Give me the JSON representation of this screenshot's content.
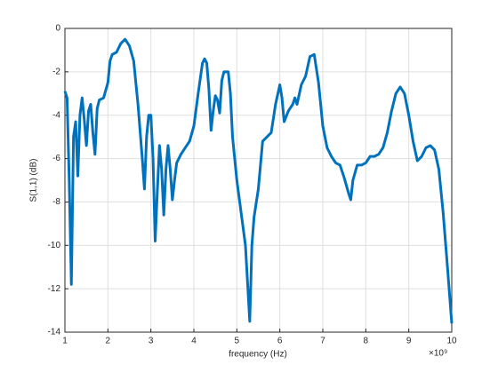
{
  "chart_data": {
    "type": "line",
    "xlabel": "frequency (Hz)",
    "ylabel": "S(1,1) (dB)",
    "x_multiplier": "×10⁹",
    "x": [
      1.0,
      1.05,
      1.1,
      1.15,
      1.2,
      1.25,
      1.3,
      1.35,
      1.4,
      1.45,
      1.5,
      1.55,
      1.6,
      1.65,
      1.7,
      1.75,
      1.8,
      1.9,
      2.0,
      2.05,
      2.1,
      2.2,
      2.3,
      2.4,
      2.5,
      2.6,
      2.7,
      2.8,
      2.85,
      2.9,
      2.95,
      3.0,
      3.05,
      3.1,
      3.15,
      3.2,
      3.25,
      3.3,
      3.35,
      3.4,
      3.45,
      3.5,
      3.55,
      3.6,
      3.7,
      3.8,
      3.9,
      4.0,
      4.1,
      4.2,
      4.25,
      4.3,
      4.35,
      4.4,
      4.45,
      4.5,
      4.55,
      4.6,
      4.65,
      4.7,
      4.8,
      4.85,
      4.9,
      5.0,
      5.1,
      5.2,
      5.3,
      5.35,
      5.4,
      5.5,
      5.6,
      5.7,
      5.8,
      5.9,
      6.0,
      6.05,
      6.1,
      6.2,
      6.3,
      6.35,
      6.4,
      6.5,
      6.6,
      6.7,
      6.8,
      6.9,
      7.0,
      7.1,
      7.2,
      7.3,
      7.4,
      7.5,
      7.6,
      7.65,
      7.7,
      7.8,
      7.9,
      8.0,
      8.1,
      8.2,
      8.3,
      8.4,
      8.5,
      8.6,
      8.7,
      8.8,
      8.9,
      9.0,
      9.1,
      9.2,
      9.3,
      9.4,
      9.5,
      9.6,
      9.7,
      9.8,
      9.9,
      10.0
    ],
    "series": [
      {
        "name": "S(1,1)",
        "color": "#0072bd",
        "values": [
          -2.9,
          -3.2,
          -7,
          -11.8,
          -5,
          -4.3,
          -6.8,
          -4,
          -3.2,
          -4.2,
          -5.4,
          -3.8,
          -3.5,
          -4.8,
          -5.8,
          -3.7,
          -3.3,
          -3.2,
          -2.5,
          -1.5,
          -1.2,
          -1.1,
          -0.7,
          -0.5,
          -0.8,
          -1.5,
          -3.5,
          -6.0,
          -7.4,
          -5,
          -4.0,
          -4.0,
          -6,
          -9.8,
          -7.5,
          -5.4,
          -6.5,
          -8.6,
          -6.5,
          -5.4,
          -6.5,
          -7.9,
          -7.0,
          -6.2,
          -5.8,
          -5.5,
          -5.2,
          -4.5,
          -3.0,
          -1.6,
          -1.4,
          -1.6,
          -2.8,
          -4.7,
          -3.8,
          -3.1,
          -3.3,
          -3.9,
          -2.4,
          -2.0,
          -2.0,
          -3.0,
          -5,
          -7,
          -8.5,
          -10.0,
          -13.5,
          -10,
          -8.7,
          -7.4,
          -5.2,
          -5.0,
          -4.8,
          -3.5,
          -2.6,
          -3.2,
          -4.3,
          -3.8,
          -3.5,
          -3.2,
          -3.5,
          -2.6,
          -2.2,
          -1.3,
          -1.2,
          -2.5,
          -4.5,
          -5.5,
          -5.9,
          -6.2,
          -6.3,
          -6.9,
          -7.6,
          -7.9,
          -7.0,
          -6.3,
          -6.3,
          -6.2,
          -5.9,
          -5.9,
          -5.8,
          -5.5,
          -4.8,
          -3.8,
          -3.0,
          -2.7,
          -3.0,
          -4.0,
          -5.2,
          -6.1,
          -5.9,
          -5.5,
          -5.4,
          -5.6,
          -6.5,
          -8.5,
          -11,
          -13.6
        ]
      }
    ],
    "xlim": [
      1,
      10
    ],
    "xticks": [
      1,
      2,
      3,
      4,
      5,
      6,
      7,
      8,
      9,
      10
    ],
    "ylim": [
      -14,
      0
    ],
    "yticks": [
      -14,
      -12,
      -10,
      -8,
      -6,
      -4,
      -2,
      0
    ],
    "grid": true
  }
}
